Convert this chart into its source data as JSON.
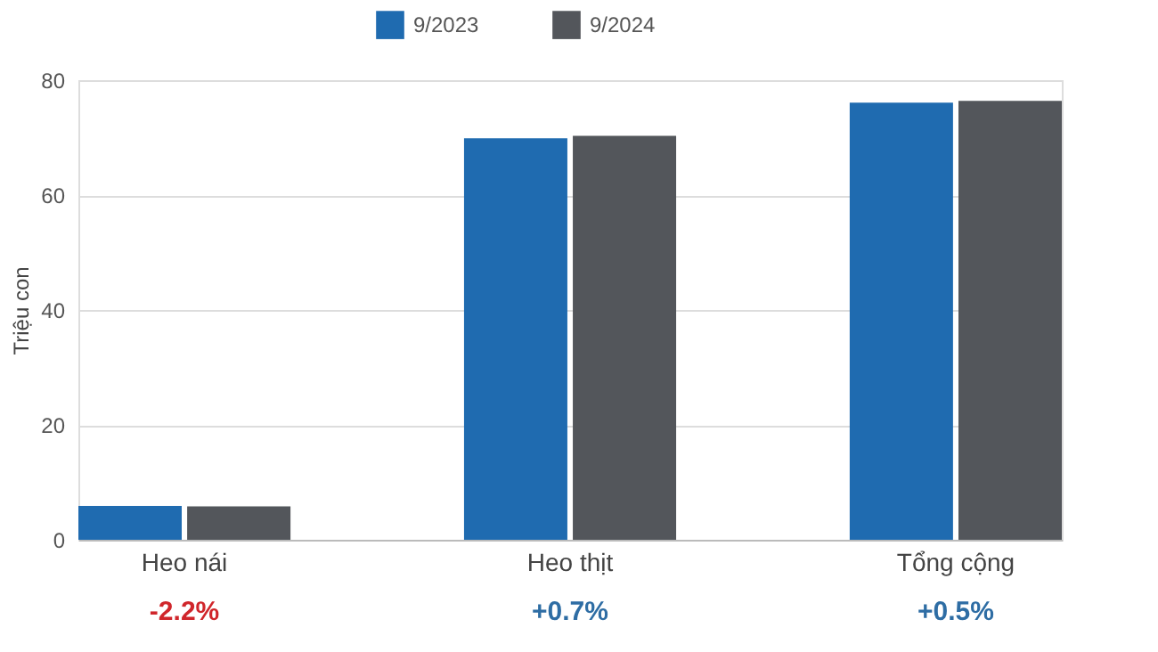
{
  "chart_data": {
    "type": "bar",
    "ylabel": "Triệu con",
    "categories": [
      "Heo nái",
      "Heo thịt",
      "Tổng cộng"
    ],
    "series": [
      {
        "name": "9/2023",
        "color": "#1f6bb0",
        "values": [
          5.9,
          69.9,
          76.1
        ]
      },
      {
        "name": "9/2024",
        "color": "#53565b",
        "values": [
          5.8,
          70.3,
          76.4
        ]
      }
    ],
    "ylim": [
      0,
      80
    ],
    "yticks": [
      0,
      20,
      40,
      60,
      80
    ],
    "grid": "y",
    "legend": "top",
    "annotations": [
      "-2.2%",
      "+0.7%",
      "+0.5%"
    ]
  }
}
